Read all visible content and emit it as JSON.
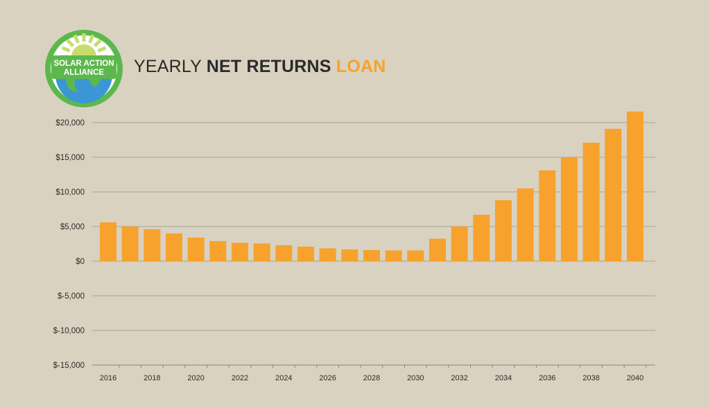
{
  "logo": {
    "text_line1": "SOLAR ACTION",
    "text_line2": "ALLIANCE",
    "ring_color": "#5cb84d",
    "sun_color": "#c7dd6b",
    "globe_color": "#3b97d3"
  },
  "title": {
    "part1": "YEARLY ",
    "part2": "NET RETURNS ",
    "part3": "LOAN",
    "accent_color": "#f7a22d"
  },
  "chart_data": {
    "type": "bar",
    "title": "YEARLY NET RETURNS LOAN",
    "bar_color": "#f7a22d",
    "grid": true,
    "ylim": [
      -15000,
      22500
    ],
    "yticks": [
      20000,
      15000,
      10000,
      5000,
      0,
      -5000,
      -10000,
      -15000
    ],
    "ytick_labels": [
      "$20,000",
      "$15,000",
      "$10,000",
      "$5,000",
      "$0",
      "$-5,000",
      "$-10,000",
      "$-15,000"
    ],
    "x_tick_labels": [
      "2016",
      "2018",
      "2020",
      "2022",
      "2024",
      "2026",
      "2028",
      "2030",
      "2032",
      "2034",
      "2036",
      "2038",
      "2040"
    ],
    "categories": [
      "2016",
      "2017",
      "2018",
      "2019",
      "2020",
      "2021",
      "2022",
      "2023",
      "2024",
      "2025",
      "2026",
      "2027",
      "2028",
      "2029",
      "2030",
      "2031",
      "2032",
      "2033",
      "2034",
      "2035",
      "2036",
      "2037",
      "2038",
      "2039",
      "2040"
    ],
    "values": [
      5600,
      5000,
      4600,
      4000,
      3400,
      2900,
      2650,
      2550,
      2300,
      2100,
      1850,
      1700,
      1600,
      1550,
      1550,
      3250,
      5000,
      6700,
      8800,
      10500,
      13100,
      15000,
      17100,
      19100,
      21600
    ]
  }
}
